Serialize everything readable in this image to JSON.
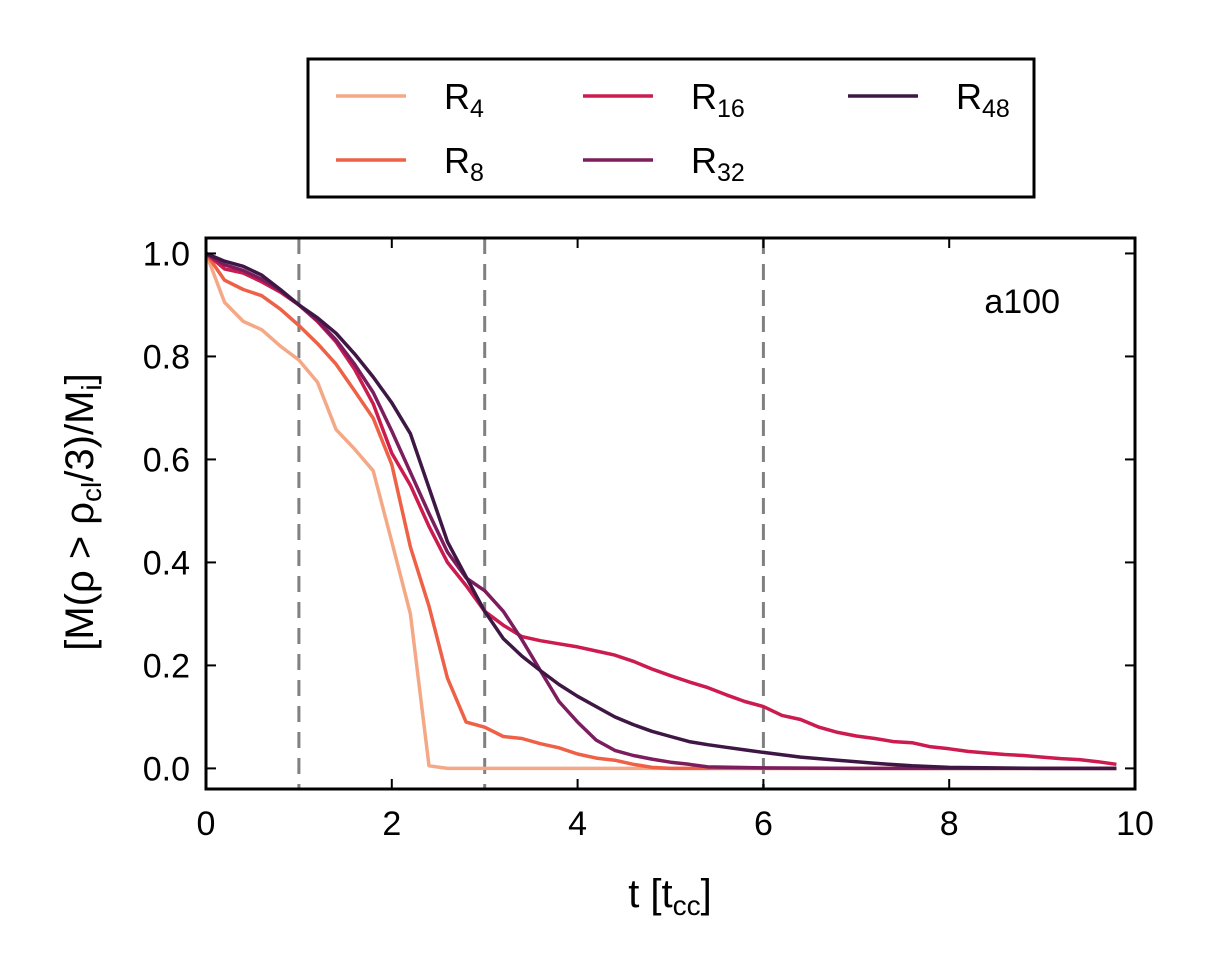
{
  "chart_data": {
    "type": "line",
    "annotation": "a100",
    "xlabel": {
      "main": "t [t",
      "sub": "cc",
      "end": "]"
    },
    "ylabel": {
      "p1": "[M(ρ > ρ",
      "sub1": "cl",
      "p2": "/3)/M",
      "sub2": "i",
      "p3": "]"
    },
    "xlim": [
      0,
      10
    ],
    "ylim": [
      -0.04,
      1.03
    ],
    "xticks": [
      0,
      2,
      4,
      6,
      8,
      10
    ],
    "xtick_labels": [
      "0",
      "2",
      "4",
      "6",
      "8",
      "10"
    ],
    "yticks": [
      0.0,
      0.2,
      0.4,
      0.6,
      0.8,
      1.0
    ],
    "ytick_labels": [
      "0.0",
      "0.2",
      "0.4",
      "0.6",
      "0.8",
      "1.0"
    ],
    "vlines": [
      1,
      3,
      6
    ],
    "vline_color": "#808080",
    "legend_location": "above plot",
    "series": [
      {
        "name": "R4",
        "label_main": "R",
        "label_sub": "4",
        "color": "#F4A886",
        "x": [
          0,
          0.2,
          0.4,
          0.6,
          0.8,
          1.0,
          1.2,
          1.4,
          1.6,
          1.8,
          2.0,
          2.2,
          2.4,
          2.6,
          2.8,
          3.0,
          4.0,
          5.0,
          6.0,
          7.0,
          8.0,
          9.0,
          9.8
        ],
        "y": [
          1.0,
          0.905,
          0.868,
          0.852,
          0.82,
          0.793,
          0.75,
          0.658,
          0.62,
          0.578,
          0.44,
          0.3,
          0.005,
          0.0,
          0.0,
          0.0,
          0.0,
          0.0,
          0.0,
          0.0,
          0.0,
          0.0,
          0.0
        ]
      },
      {
        "name": "R8",
        "label_main": "R",
        "label_sub": "8",
        "color": "#EE6146",
        "x": [
          0,
          0.2,
          0.4,
          0.6,
          0.8,
          1.0,
          1.2,
          1.4,
          1.6,
          1.8,
          2.0,
          2.2,
          2.4,
          2.6,
          2.8,
          3.0,
          3.2,
          3.4,
          3.6,
          3.8,
          4.0,
          4.2,
          4.4,
          4.6,
          4.8,
          5.0,
          6.0,
          7.0,
          8.0,
          9.0,
          9.8
        ],
        "y": [
          1.0,
          0.948,
          0.93,
          0.918,
          0.892,
          0.86,
          0.825,
          0.785,
          0.733,
          0.68,
          0.59,
          0.43,
          0.315,
          0.175,
          0.09,
          0.08,
          0.062,
          0.058,
          0.048,
          0.04,
          0.028,
          0.02,
          0.016,
          0.008,
          0.002,
          0.0,
          0.0,
          0.0,
          0.0,
          0.0,
          0.0
        ]
      },
      {
        "name": "R16",
        "label_main": "R",
        "label_sub": "16",
        "color": "#CB1B4F",
        "x": [
          0,
          0.2,
          0.4,
          0.6,
          0.8,
          1.0,
          1.2,
          1.4,
          1.6,
          1.8,
          2.0,
          2.2,
          2.4,
          2.6,
          2.8,
          3.0,
          3.2,
          3.4,
          3.6,
          3.8,
          4.0,
          4.2,
          4.4,
          4.6,
          4.8,
          5.0,
          5.2,
          5.4,
          5.6,
          5.8,
          6.0,
          6.2,
          6.4,
          6.6,
          6.8,
          7.0,
          7.2,
          7.4,
          7.6,
          7.8,
          8.0,
          8.2,
          8.4,
          8.6,
          8.8,
          9.0,
          9.2,
          9.4,
          9.6,
          9.8
        ],
        "y": [
          1.0,
          0.97,
          0.962,
          0.945,
          0.925,
          0.9,
          0.868,
          0.828,
          0.775,
          0.708,
          0.612,
          0.55,
          0.47,
          0.4,
          0.355,
          0.305,
          0.278,
          0.256,
          0.248,
          0.242,
          0.236,
          0.228,
          0.22,
          0.208,
          0.193,
          0.18,
          0.168,
          0.157,
          0.143,
          0.13,
          0.12,
          0.103,
          0.095,
          0.08,
          0.07,
          0.063,
          0.058,
          0.052,
          0.05,
          0.042,
          0.038,
          0.033,
          0.03,
          0.027,
          0.025,
          0.022,
          0.019,
          0.017,
          0.013,
          0.008
        ]
      },
      {
        "name": "R32",
        "label_main": "R",
        "label_sub": "32",
        "color": "#7C1D5D",
        "x": [
          0,
          0.2,
          0.4,
          0.6,
          0.8,
          1.0,
          1.2,
          1.4,
          1.6,
          1.8,
          2.0,
          2.2,
          2.4,
          2.6,
          2.8,
          3.0,
          3.2,
          3.4,
          3.6,
          3.8,
          4.0,
          4.2,
          4.4,
          4.6,
          4.8,
          5.0,
          5.2,
          5.4,
          6.0,
          7.0,
          8.0,
          9.0,
          9.8
        ],
        "y": [
          1.0,
          0.978,
          0.967,
          0.95,
          0.928,
          0.9,
          0.87,
          0.832,
          0.785,
          0.73,
          0.655,
          0.575,
          0.495,
          0.42,
          0.37,
          0.345,
          0.305,
          0.25,
          0.19,
          0.13,
          0.09,
          0.055,
          0.035,
          0.025,
          0.018,
          0.012,
          0.008,
          0.003,
          0.001,
          0.0,
          0.0,
          0.0,
          0.0
        ]
      },
      {
        "name": "R48",
        "label_main": "R",
        "label_sub": "48",
        "color": "#3E1744",
        "x": [
          0,
          0.2,
          0.4,
          0.6,
          0.8,
          1.0,
          1.2,
          1.4,
          1.6,
          1.8,
          2.0,
          2.2,
          2.4,
          2.6,
          2.8,
          3.0,
          3.2,
          3.4,
          3.6,
          3.8,
          4.0,
          4.2,
          4.4,
          4.6,
          4.8,
          5.0,
          5.2,
          5.4,
          5.6,
          5.8,
          6.0,
          6.4,
          6.8,
          7.2,
          7.6,
          8.0,
          9.0,
          9.8
        ],
        "y": [
          1.0,
          0.985,
          0.975,
          0.958,
          0.93,
          0.9,
          0.875,
          0.845,
          0.805,
          0.76,
          0.71,
          0.65,
          0.545,
          0.44,
          0.372,
          0.305,
          0.252,
          0.218,
          0.19,
          0.163,
          0.14,
          0.12,
          0.1,
          0.085,
          0.072,
          0.062,
          0.052,
          0.046,
          0.041,
          0.036,
          0.031,
          0.022,
          0.016,
          0.01,
          0.005,
          0.002,
          0.0,
          0.0
        ]
      }
    ]
  }
}
